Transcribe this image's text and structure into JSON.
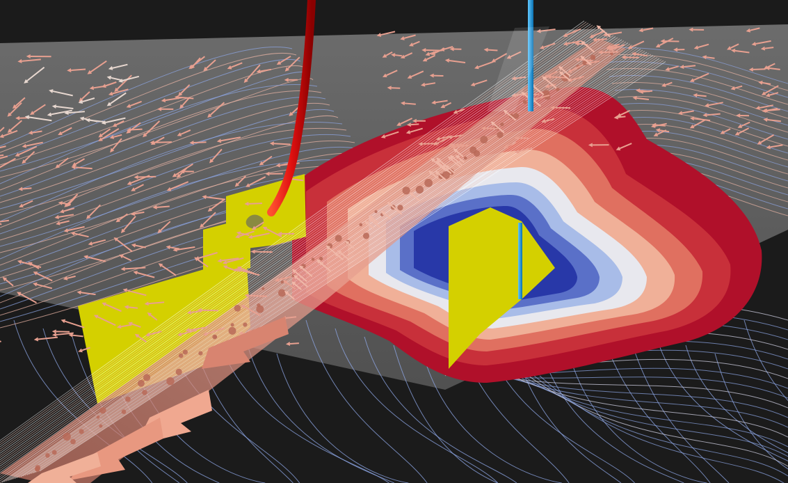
{
  "scene": {
    "kind": "3d-flow-visualization",
    "colors": {
      "background": "#1b1b1b",
      "ground_plane": "#6e6e6e",
      "streamline_blue": "#8fa8e8",
      "streamline_salmon": "#f0b8a8",
      "arrow_salmon": "#e8a090",
      "fracture_plane": "#d4d000",
      "well_red": "#e01010",
      "well_blue": "#1fa0e0",
      "isosurface_outer": "#b81228",
      "isosurface_mid": "#e8e8ee",
      "isosurface_inner": "#2838a8"
    }
  }
}
